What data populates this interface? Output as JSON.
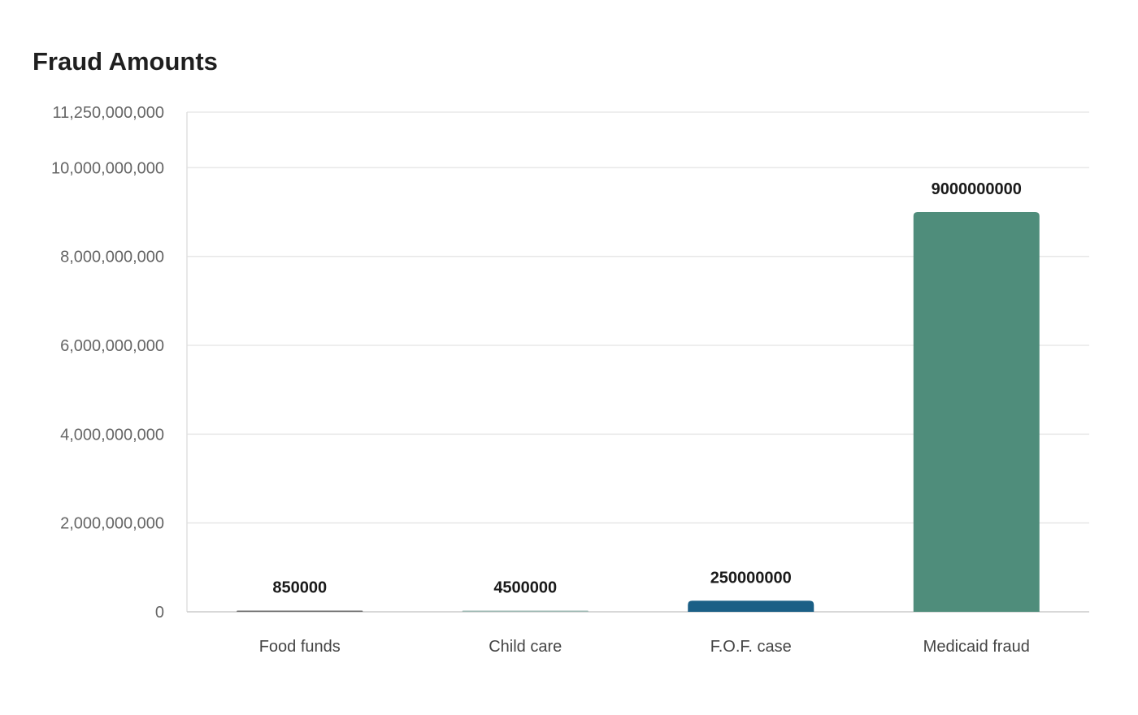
{
  "chart_data": {
    "type": "bar",
    "title": "Fraud Amounts",
    "xlabel": "",
    "ylabel": "",
    "categories": [
      "Food funds",
      "Child care",
      "F.O.F. case",
      "Medicaid fraud"
    ],
    "values": [
      850000,
      4500000,
      250000000,
      9000000000
    ],
    "value_labels": [
      "850000",
      "4500000",
      "250000000",
      "9000000000"
    ],
    "bar_colors": [
      "#6e6e6e",
      "#9db8b3",
      "#1b5f86",
      "#4f8d7b"
    ],
    "ylim": [
      0,
      11250000000
    ],
    "yticks": [
      0,
      2000000000,
      4000000000,
      6000000000,
      8000000000,
      10000000000,
      11250000000
    ],
    "ytick_labels": [
      "0",
      "2,000,000,000",
      "4,000,000,000",
      "6,000,000,000",
      "8,000,000,000",
      "10,000,000,000",
      "11,250,000,000"
    ],
    "grid": true,
    "legend": "none"
  }
}
